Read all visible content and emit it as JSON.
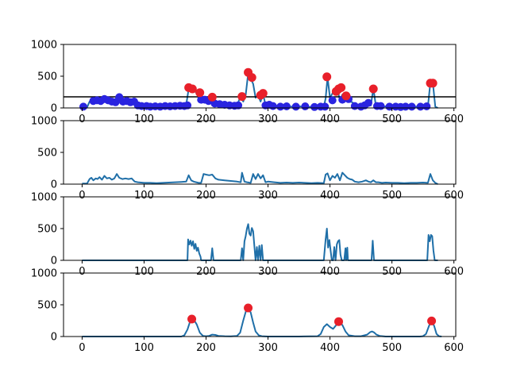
{
  "colors": {
    "line": "#1f6fa8",
    "peak": "#e8202a",
    "valley": "#2a24e0",
    "threshold": "#000000",
    "axes": "#000000"
  },
  "chart_data": [
    {
      "type": "line",
      "title": "",
      "xlabel": "",
      "ylabel": "",
      "xlim": [
        -30,
        603
      ],
      "ylim": [
        0,
        1000
      ],
      "xticks": [
        0,
        100,
        200,
        300,
        400,
        500,
        600
      ],
      "yticks": [
        0,
        500,
        1000
      ],
      "xtick_labels": [
        "0",
        "100",
        "200",
        "300",
        "400",
        "500",
        "600"
      ],
      "ytick_labels": [
        "0",
        "500",
        "1000"
      ],
      "threshold": 175,
      "series": [
        {
          "style": "line",
          "x": [
            0,
            5,
            8,
            12,
            15,
            18,
            22,
            25,
            28,
            32,
            36,
            40,
            44,
            48,
            52,
            56,
            60,
            65,
            70,
            75,
            80,
            85,
            90,
            95,
            100,
            110,
            120,
            130,
            140,
            150,
            160,
            168,
            172,
            176,
            180,
            184,
            188,
            192,
            196,
            200,
            205,
            210,
            215,
            220,
            230,
            240,
            250,
            256,
            260,
            264,
            268,
            272,
            276,
            280,
            284,
            288,
            292,
            296,
            300,
            310,
            320,
            330,
            340,
            350,
            360,
            370,
            380,
            390,
            393,
            396,
            400,
            404,
            408,
            412,
            416,
            420,
            424,
            428,
            432,
            436,
            440,
            446,
            452,
            458,
            462,
            466,
            470,
            474,
            478,
            484,
            490,
            500,
            510,
            520,
            530,
            540,
            550,
            558,
            562,
            566,
            570,
            574
          ],
          "y": [
            30,
            20,
            10,
            100,
            120,
            80,
            110,
            100,
            130,
            90,
            150,
            110,
            120,
            80,
            110,
            180,
            120,
            100,
            110,
            95,
            110,
            50,
            40,
            30,
            30,
            20,
            30,
            25,
            30,
            35,
            40,
            50,
            300,
            260,
            310,
            240,
            230,
            210,
            130,
            130,
            120,
            170,
            90,
            70,
            60,
            50,
            40,
            190,
            100,
            200,
            550,
            460,
            380,
            160,
            200,
            100,
            230,
            40,
            40,
            30,
            20,
            25,
            20,
            25,
            20,
            15,
            20,
            15,
            150,
            480,
            160,
            230,
            260,
            300,
            120,
            210,
            170,
            120,
            100,
            90,
            40,
            30,
            40,
            80,
            60,
            40,
            310,
            40,
            30,
            20,
            25,
            20,
            20,
            15,
            20,
            20,
            25,
            20,
            400,
            400,
            20,
            0
          ]
        },
        {
          "style": "peaks",
          "x": [
            172,
            178,
            190,
            210,
            258,
            268,
            274,
            288,
            292,
            395,
            410,
            414,
            418,
            426,
            470,
            562,
            566
          ],
          "y": [
            320,
            300,
            240,
            170,
            180,
            560,
            480,
            200,
            230,
            490,
            260,
            300,
            320,
            190,
            300,
            390,
            390
          ]
        },
        {
          "style": "valleys",
          "x": [
            2,
            18,
            24,
            30,
            36,
            42,
            48,
            54,
            60,
            66,
            72,
            78,
            84,
            90,
            96,
            104,
            110,
            118,
            126,
            134,
            142,
            150,
            158,
            165,
            170,
            192,
            198,
            204,
            214,
            222,
            230,
            238,
            246,
            252,
            296,
            302,
            308,
            320,
            330,
            345,
            360,
            375,
            385,
            392,
            404,
            420,
            430,
            440,
            450,
            456,
            462,
            476,
            482,
            496,
            506,
            514,
            522,
            532,
            546,
            556
          ],
          "y": [
            20,
            110,
            120,
            110,
            140,
            120,
            100,
            90,
            170,
            100,
            110,
            90,
            100,
            40,
            30,
            30,
            20,
            25,
            20,
            30,
            25,
            30,
            35,
            30,
            40,
            130,
            130,
            110,
            70,
            60,
            50,
            40,
            35,
            40,
            40,
            50,
            30,
            20,
            25,
            20,
            25,
            15,
            20,
            20,
            120,
            130,
            140,
            30,
            20,
            40,
            80,
            30,
            30,
            20,
            20,
            15,
            20,
            20,
            20,
            25
          ]
        }
      ]
    },
    {
      "type": "line",
      "title": "",
      "xlabel": "",
      "ylabel": "",
      "xlim": [
        -30,
        603
      ],
      "ylim": [
        0,
        1000
      ],
      "xticks": [
        0,
        100,
        200,
        300,
        400,
        500,
        600
      ],
      "yticks": [
        0,
        500,
        1000
      ],
      "xtick_labels": [
        "0",
        "100",
        "200",
        "300",
        "400",
        "500",
        "600"
      ],
      "ytick_labels": [
        "0",
        "500",
        "1000"
      ],
      "series": [
        {
          "style": "line",
          "x": [
            0,
            8,
            12,
            15,
            18,
            22,
            25,
            28,
            32,
            36,
            40,
            44,
            48,
            52,
            56,
            60,
            65,
            70,
            75,
            80,
            85,
            90,
            100,
            110,
            120,
            130,
            140,
            150,
            160,
            168,
            172,
            176,
            180,
            184,
            188,
            192,
            196,
            200,
            205,
            210,
            215,
            220,
            230,
            240,
            250,
            256,
            258,
            262,
            266,
            272,
            276,
            280,
            284,
            288,
            292,
            296,
            300,
            310,
            320,
            330,
            340,
            350,
            360,
            370,
            380,
            390,
            393,
            396,
            400,
            404,
            408,
            412,
            416,
            420,
            424,
            428,
            432,
            436,
            440,
            446,
            452,
            458,
            462,
            466,
            470,
            474,
            478,
            484,
            490,
            500,
            510,
            520,
            530,
            540,
            550,
            558,
            562,
            566,
            570,
            574
          ],
          "y": [
            10,
            10,
            80,
            100,
            60,
            90,
            80,
            110,
            70,
            130,
            90,
            100,
            70,
            90,
            160,
            100,
            80,
            90,
            80,
            90,
            40,
            30,
            20,
            20,
            15,
            20,
            25,
            30,
            35,
            40,
            140,
            60,
            40,
            30,
            20,
            20,
            160,
            150,
            140,
            150,
            90,
            70,
            60,
            50,
            40,
            30,
            180,
            40,
            30,
            20,
            160,
            80,
            160,
            90,
            140,
            30,
            40,
            30,
            20,
            25,
            20,
            25,
            20,
            15,
            20,
            15,
            150,
            170,
            60,
            130,
            100,
            160,
            60,
            180,
            140,
            100,
            80,
            70,
            40,
            30,
            40,
            60,
            40,
            30,
            60,
            30,
            30,
            20,
            25,
            20,
            20,
            15,
            20,
            20,
            25,
            20,
            160,
            60,
            20,
            0
          ]
        }
      ]
    },
    {
      "type": "line",
      "title": "",
      "xlabel": "",
      "ylabel": "",
      "xlim": [
        -30,
        603
      ],
      "ylim": [
        0,
        1000
      ],
      "xticks": [
        0,
        100,
        200,
        300,
        400,
        500,
        600
      ],
      "yticks": [
        0,
        500,
        1000
      ],
      "xtick_labels": [
        "0",
        "100",
        "200",
        "300",
        "400",
        "500",
        "600"
      ],
      "ytick_labels": [
        "0",
        "500",
        "1000"
      ],
      "series": [
        {
          "style": "line",
          "x": [
            0,
            170,
            171,
            173,
            175,
            177,
            179,
            181,
            183,
            185,
            187,
            189,
            191,
            192,
            208,
            210,
            212,
            256,
            258,
            260,
            262,
            264,
            266,
            268,
            270,
            272,
            274,
            276,
            278,
            280,
            282,
            284,
            286,
            288,
            290,
            292,
            294,
            390,
            393,
            395,
            397,
            399,
            401,
            403,
            405,
            407,
            409,
            411,
            413,
            415,
            417,
            419,
            421,
            423,
            425,
            426,
            428,
            429,
            430,
            431,
            467,
            469,
            471,
            473,
            557,
            559,
            561,
            563,
            565,
            567,
            569,
            571,
            574
          ],
          "y": [
            0,
            0,
            330,
            250,
            310,
            230,
            300,
            180,
            260,
            150,
            200,
            110,
            60,
            0,
            0,
            190,
            0,
            0,
            190,
            0,
            300,
            380,
            500,
            570,
            420,
            390,
            510,
            460,
            220,
            0,
            210,
            0,
            230,
            0,
            240,
            0,
            0,
            0,
            330,
            500,
            200,
            320,
            150,
            0,
            0,
            210,
            0,
            250,
            300,
            320,
            90,
            0,
            0,
            0,
            190,
            0,
            200,
            0,
            0,
            0,
            0,
            310,
            0,
            0,
            0,
            400,
            300,
            400,
            380,
            150,
            0,
            0,
            0
          ]
        }
      ]
    },
    {
      "type": "line",
      "title": "",
      "xlabel": "",
      "ylabel": "",
      "xlim": [
        -30,
        603
      ],
      "ylim": [
        0,
        1000
      ],
      "xticks": [
        0,
        100,
        200,
        300,
        400,
        500,
        600
      ],
      "yticks": [
        0,
        500,
        1000
      ],
      "xtick_labels": [
        "0",
        "100",
        "200",
        "300",
        "400",
        "500",
        "600"
      ],
      "ytick_labels": [
        "0",
        "500",
        "1000"
      ],
      "series": [
        {
          "style": "line",
          "x": [
            0,
            160,
            165,
            170,
            175,
            180,
            185,
            190,
            195,
            200,
            205,
            210,
            215,
            220,
            230,
            240,
            250,
            255,
            260,
            265,
            268,
            272,
            276,
            280,
            285,
            290,
            300,
            310,
            320,
            350,
            380,
            385,
            390,
            395,
            400,
            405,
            410,
            415,
            420,
            425,
            430,
            440,
            450,
            460,
            465,
            468,
            471,
            475,
            480,
            490,
            520,
            545,
            550,
            555,
            560,
            564,
            568,
            572,
            576,
            580
          ],
          "y": [
            0,
            0,
            20,
            110,
            260,
            270,
            190,
            60,
            10,
            5,
            10,
            30,
            25,
            10,
            5,
            3,
            10,
            60,
            250,
            420,
            450,
            380,
            220,
            80,
            20,
            5,
            0,
            0,
            0,
            0,
            5,
            40,
            150,
            195,
            150,
            120,
            180,
            240,
            180,
            80,
            20,
            5,
            5,
            30,
            70,
            80,
            65,
            30,
            10,
            0,
            0,
            0,
            5,
            40,
            170,
            245,
            170,
            40,
            5,
            0
          ]
        },
        {
          "style": "peaks",
          "x": [
            177,
            268,
            414,
            564
          ],
          "y": [
            275,
            450,
            235,
            245
          ]
        }
      ]
    }
  ]
}
